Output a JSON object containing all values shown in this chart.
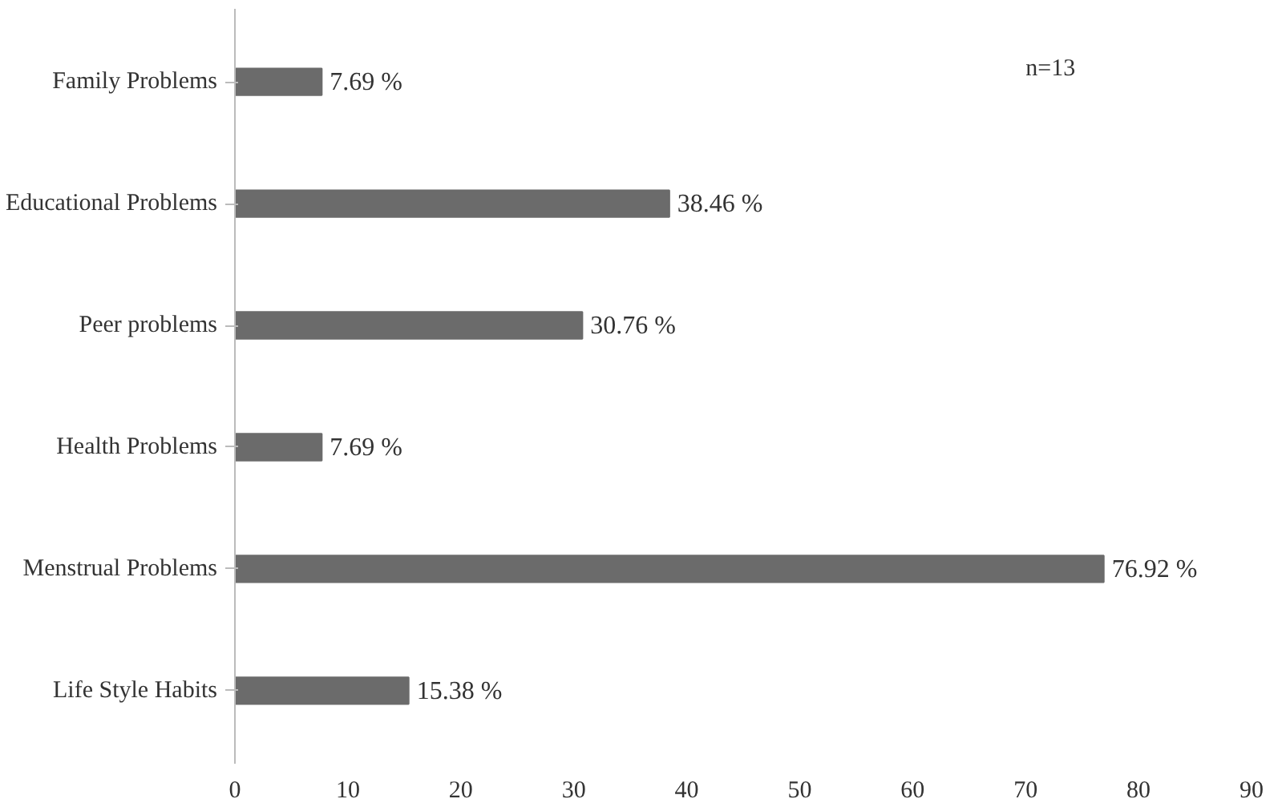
{
  "chart_data": {
    "type": "bar",
    "orientation": "horizontal",
    "categories": [
      "Family Problems",
      "Educational Problems",
      "Peer problems",
      "Health Problems",
      "Menstrual Problems",
      "Life Style Habits"
    ],
    "values": [
      7.69,
      38.46,
      30.76,
      7.69,
      76.92,
      15.38
    ],
    "value_labels": [
      "7.69 %",
      "38.46 %",
      "30.76 %",
      "7.69 %",
      "76.92 %",
      "15.38 %"
    ],
    "color": "#6b6b6b",
    "xlim": [
      0,
      90
    ],
    "xticks": [
      0,
      10,
      20,
      30,
      40,
      50,
      60,
      70,
      80,
      90
    ],
    "annotations": [
      "n=13"
    ],
    "grid": false
  }
}
